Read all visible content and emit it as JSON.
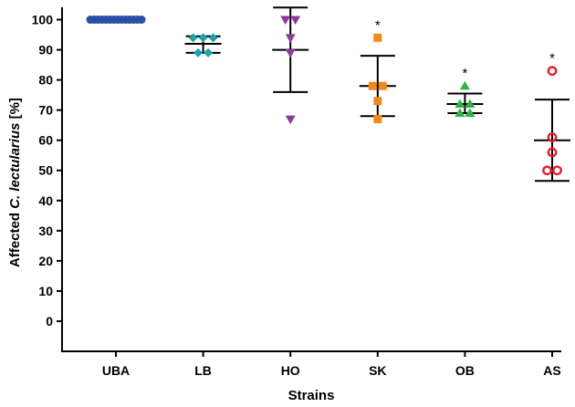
{
  "chart_data": {
    "type": "scatter",
    "xlabel": "Strains",
    "ylabel_prefix": "Affected ",
    "ylabel_italic": "C. lectularius",
    "ylabel_suffix": " [%]",
    "ylim": [
      -10,
      105
    ],
    "yticks": [
      0,
      10,
      20,
      30,
      40,
      50,
      60,
      70,
      80,
      90,
      100
    ],
    "categories": [
      "UBA",
      "LB",
      "HO",
      "SK",
      "OB",
      "AS"
    ],
    "series": [
      {
        "category": "UBA",
        "marker": "circle",
        "color": "#2a4fa8",
        "points": [
          100,
          100,
          100,
          100,
          100,
          100,
          100,
          100,
          100,
          100,
          100,
          100,
          100,
          100
        ],
        "mean": 100,
        "err_low": 100,
        "err_high": 100,
        "significant": ""
      },
      {
        "category": "LB",
        "marker": "diamond",
        "color": "#1fa3ad",
        "points": [
          94,
          94,
          94,
          89,
          89
        ],
        "mean": 92,
        "err_low": 89,
        "err_high": 94.5,
        "significant": ""
      },
      {
        "category": "HO",
        "marker": "triangle-down",
        "color": "#8b3a9e",
        "points": [
          100,
          100,
          94,
          89,
          67
        ],
        "mean": 90,
        "err_low": 76,
        "err_high": 104,
        "significant": ""
      },
      {
        "category": "SK",
        "marker": "square",
        "color": "#f08a1c",
        "points": [
          94,
          78,
          78,
          73,
          67
        ],
        "mean": 78,
        "err_low": 68,
        "err_high": 88,
        "significant": "*"
      },
      {
        "category": "OB",
        "marker": "triangle-up",
        "color": "#2db34a",
        "points": [
          78,
          72,
          72,
          69,
          69
        ],
        "mean": 72,
        "err_low": 69,
        "err_high": 75.5,
        "significant": "*"
      },
      {
        "category": "AS",
        "marker": "open-circle",
        "color": "#e0202a",
        "points": [
          83,
          61,
          56,
          50,
          50
        ],
        "mean": 60,
        "err_low": 46.5,
        "err_high": 73.5,
        "significant": "*"
      }
    ]
  }
}
